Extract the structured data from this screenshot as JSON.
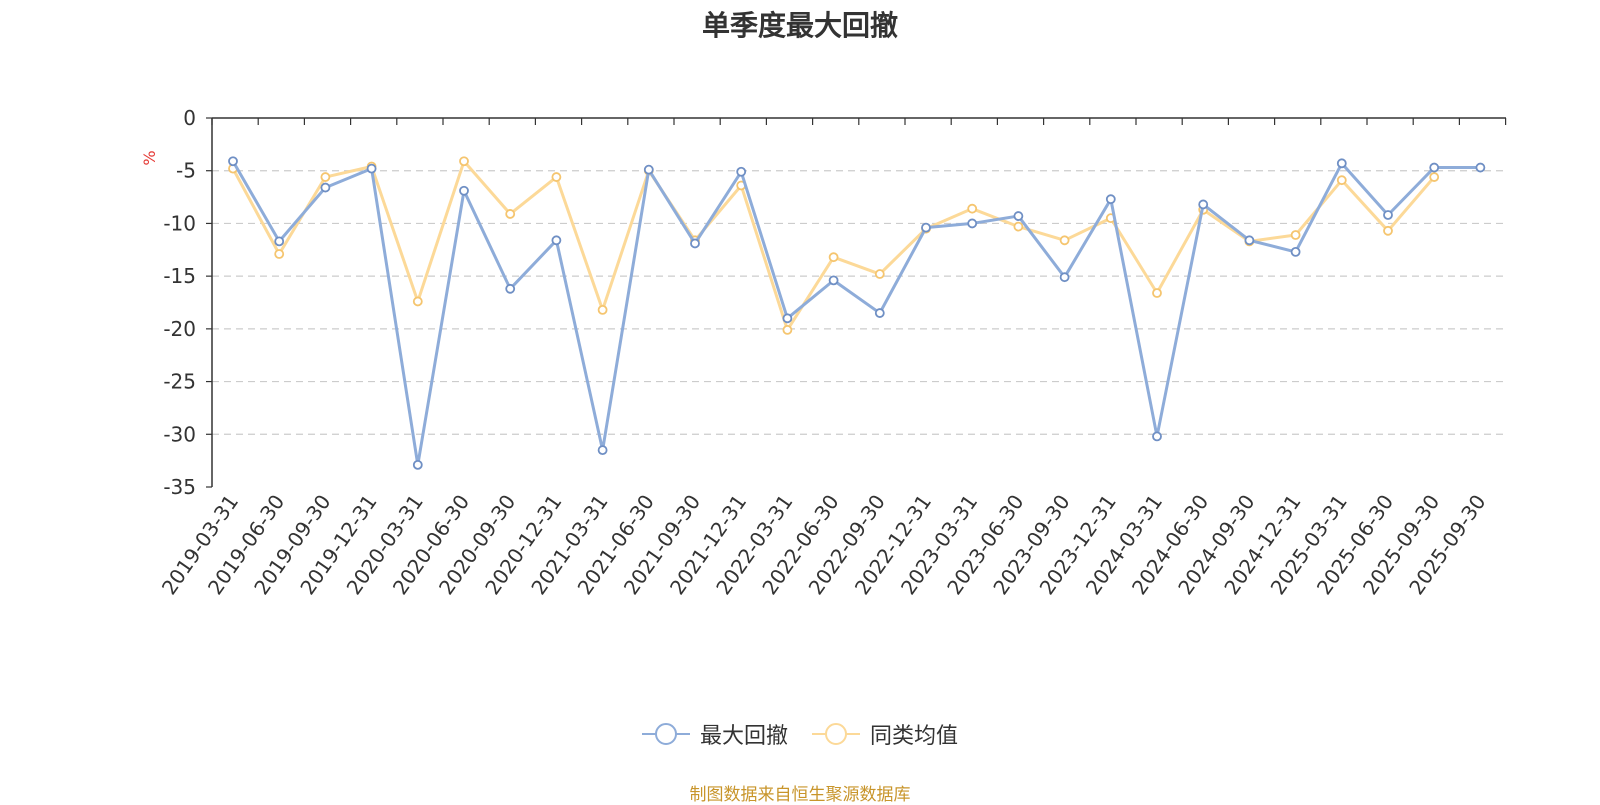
{
  "chart_data": {
    "type": "line",
    "title": "单季度最大回撤",
    "ylabel": "%",
    "ylim": [
      -35,
      0
    ],
    "yticks": [
      0,
      -5,
      -10,
      -15,
      -20,
      -25,
      -30,
      -35
    ],
    "grid": true,
    "legend_position": "bottom",
    "categories": [
      "2019-03-31",
      "2019-06-30",
      "2019-09-30",
      "2019-12-31",
      "2020-03-31",
      "2020-06-30",
      "2020-09-30",
      "2020-12-31",
      "2021-03-31",
      "2021-06-30",
      "2021-09-30",
      "2021-12-31",
      "2022-03-31",
      "2022-06-30",
      "2022-09-30",
      "2022-12-31",
      "2023-03-31",
      "2023-06-30",
      "2023-09-30",
      "2023-12-31",
      "2024-03-31",
      "2024-06-30",
      "2024-09-30",
      "2024-12-31",
      "2025-03-31",
      "2025-06-30",
      "2025-09-30",
      "2025-09-30"
    ],
    "series": [
      {
        "name": "最大回撤",
        "color": "#8eacd9",
        "values": [
          -4.1,
          -11.7,
          -6.6,
          -4.8,
          -32.9,
          -6.9,
          -16.2,
          -11.6,
          -31.5,
          -4.9,
          -11.9,
          -5.1,
          -19.0,
          -15.4,
          -18.5,
          -10.4,
          -10.0,
          -9.3,
          -15.1,
          -7.7,
          -30.2,
          -8.2,
          -11.6,
          -12.7,
          -4.3,
          -9.2,
          -4.7,
          -4.7
        ]
      },
      {
        "name": "同类均值",
        "color": "#fcd998",
        "values": [
          -4.8,
          -12.9,
          -5.6,
          -4.6,
          -17.4,
          -4.1,
          -9.1,
          -5.6,
          -18.2,
          -5.0,
          -11.6,
          -6.4,
          -20.1,
          -13.2,
          -14.8,
          -10.5,
          -8.6,
          -10.3,
          -11.6,
          -9.5,
          -16.6,
          -8.7,
          -11.7,
          -11.1,
          -5.9,
          -10.7,
          -5.6,
          null
        ]
      }
    ]
  },
  "source_note": "制图数据来自恒生聚源数据库"
}
